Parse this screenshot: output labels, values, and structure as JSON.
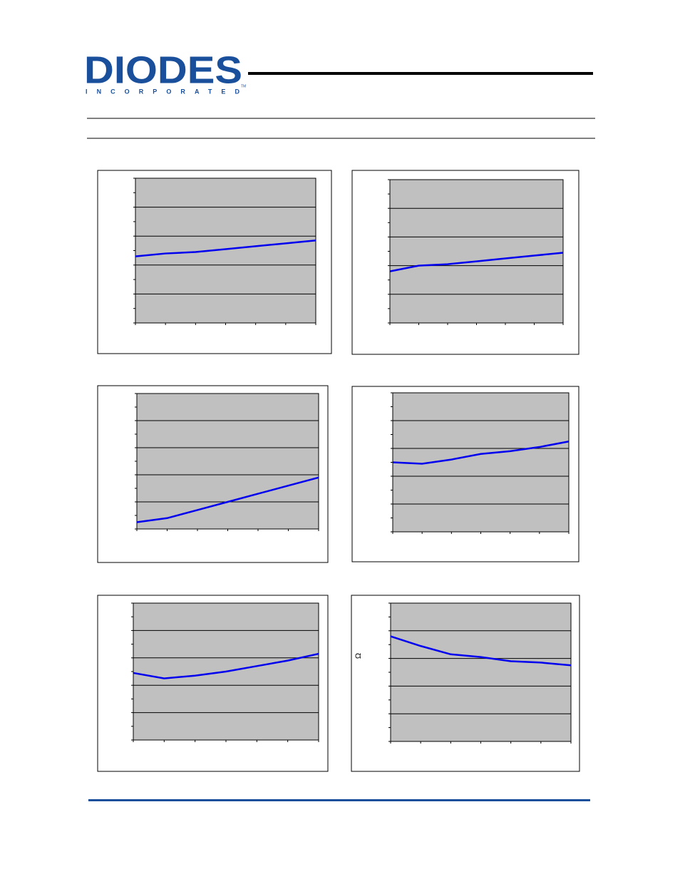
{
  "header": {
    "logo": "DIODES",
    "logo_sub": "INCORPORATED",
    "trademark": "TM"
  },
  "chart_data": [
    {
      "type": "line",
      "x": [
        0,
        1,
        2,
        3,
        4,
        5,
        6
      ],
      "xlim": [
        0,
        6
      ],
      "ylim": [
        0,
        100
      ],
      "color": "#0000ee",
      "values": [
        46,
        48,
        49,
        51,
        53,
        55,
        57
      ]
    },
    {
      "type": "line",
      "x": [
        0,
        1,
        2,
        3,
        4,
        5,
        6
      ],
      "xlim": [
        0,
        6
      ],
      "ylim": [
        0,
        100
      ],
      "color": "#0000ee",
      "values": [
        36,
        40,
        41,
        43,
        45,
        47,
        49
      ]
    },
    {
      "type": "line",
      "x": [
        0,
        1,
        2,
        3,
        4,
        5,
        6
      ],
      "xlim": [
        0,
        6
      ],
      "ylim": [
        0,
        100
      ],
      "color": "#0000ee",
      "values": [
        5,
        8,
        14,
        20,
        26,
        32,
        38
      ]
    },
    {
      "type": "line",
      "x": [
        0,
        1,
        2,
        3,
        4,
        5,
        6
      ],
      "xlim": [
        0,
        6
      ],
      "ylim": [
        0,
        100
      ],
      "color": "#0000ee",
      "values": [
        50,
        49,
        52,
        56,
        58,
        61,
        65
      ]
    },
    {
      "type": "line",
      "x": [
        0,
        1,
        2,
        3,
        4,
        5,
        6
      ],
      "xlim": [
        0,
        6
      ],
      "ylim": [
        0,
        100
      ],
      "color": "#0000ee",
      "values": [
        49,
        45,
        47,
        50,
        54,
        58,
        63
      ]
    },
    {
      "type": "line",
      "x": [
        0,
        1,
        2,
        3,
        4,
        5,
        6
      ],
      "xlim": [
        0,
        6
      ],
      "ylim": [
        0,
        100
      ],
      "color": "#0000ee",
      "values": [
        76,
        69,
        63,
        61,
        58,
        57,
        55
      ],
      "y_label": "Ω"
    }
  ]
}
